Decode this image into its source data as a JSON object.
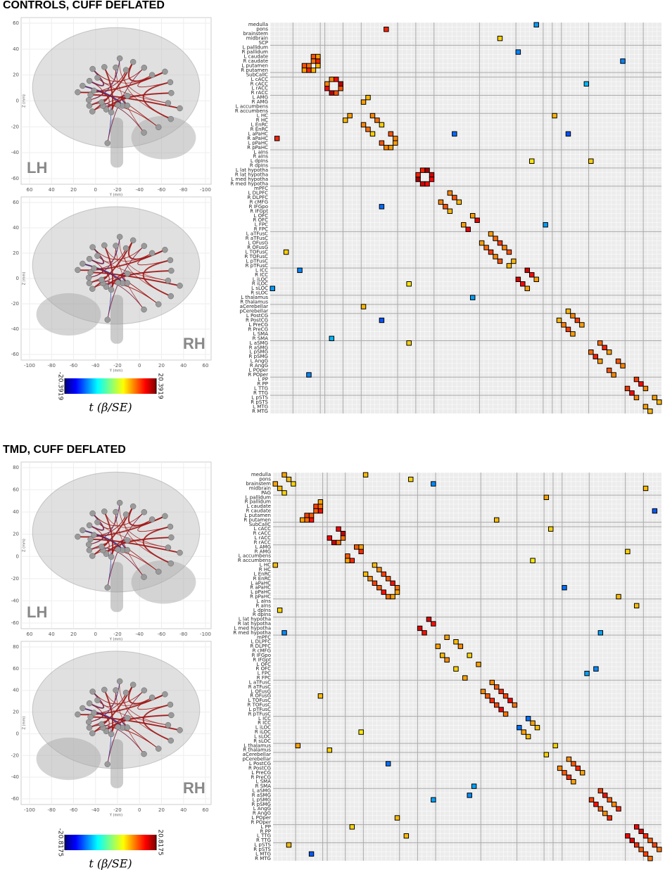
{
  "panels": [
    {
      "title": "CONTROLS, CUFF DEFLATED",
      "brain_views": [
        {
          "hemisphere": "LH",
          "xlabel": "Y (mm)",
          "ylabel": "Z (mm)",
          "xticks": [
            60,
            40,
            20,
            0,
            -20,
            -40,
            -60,
            -80,
            -100
          ],
          "yticks": [
            60,
            40,
            20,
            0,
            -20,
            -40,
            -60
          ]
        },
        {
          "hemisphere": "RH",
          "xlabel": "Y (mm)",
          "ylabel": "Z (mm)",
          "xticks": [
            -100,
            -80,
            -60,
            -40,
            -20,
            0,
            20,
            40,
            60
          ],
          "yticks": [
            60,
            40,
            20,
            0,
            -20,
            -40,
            -60
          ]
        }
      ],
      "colorbar": {
        "clim": [
          -20.3919,
          20.3919
        ],
        "label": "t (β/SE)"
      },
      "matrix": {
        "regions": [
          "medulla",
          "pons",
          "brainstem",
          "midbrain",
          "SCP",
          "L pallidum",
          "R pallidum",
          "L caudate",
          "R caudate",
          "L putamen",
          "R putamen",
          "SubCallC",
          "L cACC",
          "R cACC",
          "L rACC",
          "R rACC",
          "L AMG",
          "R AMG",
          "L accumbens",
          "R accumbens",
          "L HC",
          "R HC",
          "L EnRC",
          "R EnRC",
          "L aPaHC",
          "R aPaHC",
          "L pPaHC",
          "R pPaHC",
          "L aIns",
          "R aIns",
          "L dpIns",
          "R dpIns",
          "L lat hypotha",
          "R lat hypotha",
          "L med hypotha",
          "R med hypotha",
          "mPFC",
          "L DLPFC",
          "R DLPFC",
          "R cMFG",
          "R IFGpo",
          "R IFGpt",
          "L OFC",
          "R OFC",
          "L FPC",
          "R FPC",
          "L aTFusC",
          "R aTFusC",
          "L OFusG",
          "R OFusG",
          "L TOFusC",
          "R TOFusC",
          "L pTFusC",
          "R pTFusC",
          "L ICC",
          "R ICC",
          "L iLOC",
          "R iLOC",
          "L sLOC",
          "R sLOC",
          "L thalamus",
          "R thalamus",
          "aCerebellar",
          "pCerebellar",
          "L PostCG",
          "R PostCG",
          "L PreCG",
          "R PreCG",
          "L SMA",
          "R SMA",
          "L aSMG",
          "R aSMG",
          "L pSMG",
          "R pSMG",
          "L AngG",
          "R AngG",
          "L POper",
          "R POper",
          "L PP",
          "R PP",
          "L TTG",
          "R TTG",
          "L pSTS",
          "R pSTS",
          "L MTG",
          "R MTG"
        ],
        "cells": [
          [
            7,
            9,
            12
          ],
          [
            8,
            10,
            14
          ],
          [
            7,
            10,
            9
          ],
          [
            8,
            9,
            11
          ],
          [
            9,
            10,
            8
          ],
          [
            12,
            14,
            15
          ],
          [
            13,
            15,
            18
          ],
          [
            12,
            13,
            10
          ],
          [
            14,
            15,
            12
          ],
          [
            16,
            21,
            8
          ],
          [
            17,
            20,
            9
          ],
          [
            20,
            22,
            10
          ],
          [
            21,
            23,
            11
          ],
          [
            22,
            24,
            7
          ],
          [
            24,
            26,
            12
          ],
          [
            25,
            27,
            10
          ],
          [
            26,
            27,
            9
          ],
          [
            32,
            34,
            19
          ],
          [
            33,
            35,
            17
          ],
          [
            32,
            33,
            14
          ],
          [
            34,
            35,
            15
          ],
          [
            37,
            39,
            10
          ],
          [
            38,
            40,
            12
          ],
          [
            39,
            41,
            8
          ],
          [
            42,
            44,
            9
          ],
          [
            43,
            45,
            16
          ],
          [
            46,
            48,
            9
          ],
          [
            47,
            49,
            11
          ],
          [
            48,
            50,
            13
          ],
          [
            49,
            51,
            10
          ],
          [
            50,
            52,
            12
          ],
          [
            52,
            53,
            8
          ],
          [
            54,
            56,
            17
          ],
          [
            55,
            57,
            15
          ],
          [
            56,
            58,
            9
          ],
          [
            63,
            65,
            8
          ],
          [
            64,
            66,
            10
          ],
          [
            65,
            67,
            13
          ],
          [
            66,
            68,
            9
          ],
          [
            70,
            72,
            11
          ],
          [
            71,
            73,
            14
          ],
          [
            72,
            74,
            9
          ],
          [
            74,
            76,
            12
          ],
          [
            75,
            77,
            10
          ],
          [
            78,
            80,
            13
          ],
          [
            79,
            81,
            15
          ],
          [
            80,
            82,
            10
          ],
          [
            82,
            84,
            9
          ],
          [
            83,
            85,
            8
          ],
          [
            1,
            25,
            14
          ],
          [
            0,
            58,
            -9
          ],
          [
            6,
            54,
            -10
          ],
          [
            13,
            69,
            -8
          ],
          [
            3,
            50,
            7
          ],
          [
            24,
            40,
            -11
          ],
          [
            30,
            70,
            7
          ],
          [
            44,
            60,
            -9
          ],
          [
            20,
            62,
            8
          ],
          [
            30,
            57,
            6
          ],
          [
            24,
            65,
            -12
          ],
          [
            8,
            77,
            -10
          ]
        ]
      }
    },
    {
      "title": "TMD, CUFF DEFLATED",
      "brain_views": [
        {
          "hemisphere": "LH",
          "xlabel": "Y (mm)",
          "ylabel": "Z (mm)",
          "xticks": [
            60,
            40,
            20,
            0,
            -20,
            -40,
            -60,
            -80,
            -100
          ],
          "yticks": [
            80,
            60,
            40,
            20,
            0,
            -20,
            -40,
            -60
          ]
        },
        {
          "hemisphere": "RH",
          "xlabel": "Y (mm)",
          "ylabel": "Z (mm)",
          "xticks": [
            -100,
            -80,
            -60,
            -40,
            -20,
            0,
            20,
            40,
            60
          ],
          "yticks": [
            80,
            60,
            40,
            20,
            0,
            -20,
            -40,
            -60
          ]
        }
      ],
      "colorbar": {
        "clim": [
          -20.8175,
          20.8175
        ],
        "label": "t (β/SE)"
      },
      "matrix": {
        "regions": [
          "medulla",
          "pons",
          "brainstem",
          "midbrain",
          "PAG",
          "L pallidum",
          "R pallidum",
          "L caudate",
          "R caudate",
          "L putamen",
          "R putamen",
          "SubCallC",
          "L cACC",
          "R cACC",
          "L rACC",
          "R rACC",
          "L AMG",
          "R AMG",
          "L accumbens",
          "R accumbens",
          "L HC",
          "R HC",
          "L EnRC",
          "R EnRC",
          "L aPaHC",
          "R aPaHC",
          "L pPaHC",
          "R pPaHC",
          "L aIns",
          "R aIns",
          "L dpIns",
          "R dpIns",
          "L lat hypotha",
          "R lat hypotha",
          "L med hypotha",
          "R med hypotha",
          "mPFC",
          "L DLPFC",
          "R DLPFC",
          "R cMFG",
          "R IFGpo",
          "R IFGpt",
          "L OFC",
          "R OFC",
          "L FPC",
          "R FPC",
          "L aTFusC",
          "R aTFusC",
          "L OFusG",
          "R OFusG",
          "L TOFusC",
          "R TOFusC",
          "L pTFusC",
          "R pTFusC",
          "L ICC",
          "R ICC",
          "L iLOC",
          "R iLOC",
          "L sLOC",
          "R sLOC",
          "L thalamus",
          "R thalamus",
          "aCerebellar",
          "pCerebellar",
          "L PostCG",
          "R PostCG",
          "L PreCG",
          "R PreCG",
          "L SMA",
          "R SMA",
          "L aSMG",
          "R aSMG",
          "L pSMG",
          "R pSMG",
          "L AngG",
          "R AngG",
          "L POper",
          "R POper",
          "L PP",
          "R PP",
          "L TTG",
          "R TTG",
          "L pSTS",
          "R pSTS",
          "L MTG",
          "R MTG"
        ],
        "cells": [
          [
            0,
            2,
            9
          ],
          [
            1,
            3,
            8
          ],
          [
            2,
            4,
            7
          ],
          [
            7,
            9,
            13
          ],
          [
            8,
            10,
            15
          ],
          [
            7,
            10,
            11
          ],
          [
            8,
            9,
            12
          ],
          [
            6,
            10,
            9
          ],
          [
            12,
            14,
            16
          ],
          [
            13,
            15,
            18
          ],
          [
            14,
            15,
            11
          ],
          [
            16,
            18,
            12
          ],
          [
            17,
            19,
            14
          ],
          [
            16,
            19,
            9
          ],
          [
            20,
            22,
            8
          ],
          [
            21,
            23,
            10
          ],
          [
            22,
            24,
            13
          ],
          [
            23,
            25,
            12
          ],
          [
            24,
            26,
            15
          ],
          [
            25,
            27,
            11
          ],
          [
            26,
            27,
            9
          ],
          [
            32,
            34,
            17
          ],
          [
            33,
            35,
            15
          ],
          [
            36,
            38,
            9
          ],
          [
            37,
            40,
            8
          ],
          [
            38,
            41,
            10
          ],
          [
            40,
            43,
            7
          ],
          [
            42,
            45,
            9
          ],
          [
            46,
            48,
            10
          ],
          [
            47,
            49,
            12
          ],
          [
            48,
            50,
            14
          ],
          [
            49,
            51,
            13
          ],
          [
            50,
            52,
            16
          ],
          [
            51,
            53,
            11
          ],
          [
            54,
            56,
            -11
          ],
          [
            55,
            57,
            9
          ],
          [
            56,
            58,
            8
          ],
          [
            60,
            62,
            7
          ],
          [
            63,
            65,
            10
          ],
          [
            64,
            66,
            12
          ],
          [
            65,
            67,
            14
          ],
          [
            66,
            68,
            9
          ],
          [
            70,
            72,
            13
          ],
          [
            71,
            73,
            15
          ],
          [
            72,
            74,
            12
          ],
          [
            73,
            75,
            10
          ],
          [
            74,
            76,
            14
          ],
          [
            78,
            80,
            16
          ],
          [
            79,
            81,
            17
          ],
          [
            80,
            82,
            14
          ],
          [
            81,
            83,
            12
          ],
          [
            82,
            84,
            13
          ],
          [
            83,
            85,
            11
          ],
          [
            0,
            20,
            8
          ],
          [
            1,
            30,
            7
          ],
          [
            5,
            60,
            9
          ],
          [
            2,
            35,
            -10
          ],
          [
            10,
            49,
            8
          ],
          [
            17,
            78,
            7
          ],
          [
            25,
            64,
            -11
          ],
          [
            29,
            80,
            8
          ],
          [
            35,
            72,
            -9
          ],
          [
            8,
            84,
            -12
          ],
          [
            43,
            71,
            -10
          ],
          [
            12,
            61,
            7
          ],
          [
            27,
            76,
            8
          ],
          [
            44,
            69,
            -9
          ],
          [
            19,
            57,
            6
          ],
          [
            3,
            82,
            8
          ]
        ]
      }
    }
  ]
}
